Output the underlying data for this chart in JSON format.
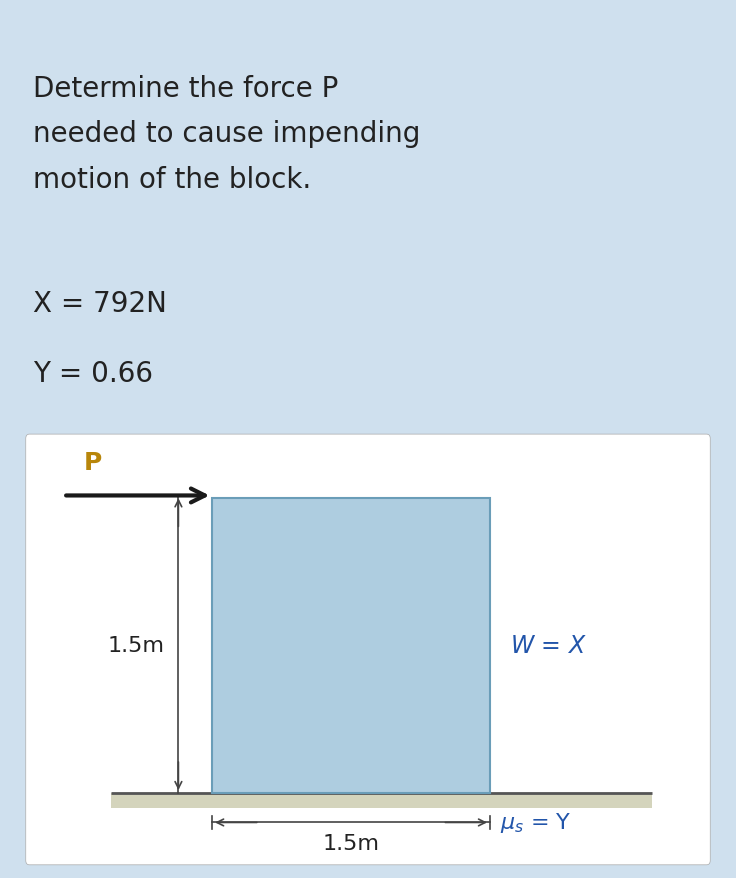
{
  "bg_color": "#cfe0ee",
  "diagram_bg": "#ffffff",
  "title_lines": [
    "Determine the force P",
    "needed to cause impending",
    "motion of the block."
  ],
  "x_label": "X = 792N",
  "y_label": "Y = 0.66",
  "block_color": "#aecde0",
  "block_edge_color": "#6a9db8",
  "ground_color": "#d4d4bc",
  "text_color": "#222222",
  "p_label_color": "#b8860b",
  "blue_label_color": "#2255aa",
  "p_label": "P",
  "w_label": "W = X",
  "dim_v_label": "1.5m",
  "dim_h_label": "1.5m",
  "title_fontsize": 20,
  "var_fontsize": 20,
  "diag_fontsize": 16
}
